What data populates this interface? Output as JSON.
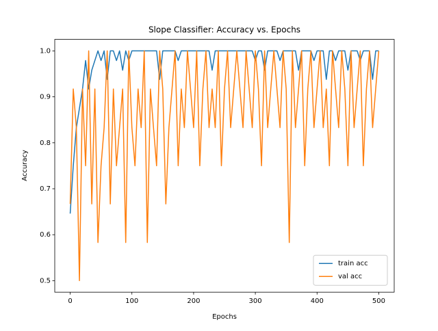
{
  "chart_data": {
    "type": "line",
    "title": "Slope Classifier: Accuracy vs. Epochs",
    "x_label": "Epochs",
    "y_label": "Accuracy",
    "x": [
      0,
      5,
      10,
      15,
      20,
      25,
      30,
      35,
      40,
      45,
      50,
      55,
      60,
      65,
      70,
      75,
      80,
      85,
      90,
      95,
      100,
      105,
      110,
      115,
      120,
      125,
      130,
      135,
      140,
      145,
      150,
      155,
      160,
      165,
      170,
      175,
      180,
      185,
      190,
      195,
      200,
      205,
      210,
      215,
      220,
      225,
      230,
      235,
      240,
      245,
      250,
      255,
      260,
      265,
      270,
      275,
      280,
      285,
      290,
      295,
      300,
      305,
      310,
      315,
      320,
      325,
      330,
      335,
      340,
      345,
      350,
      355,
      360,
      365,
      370,
      375,
      380,
      385,
      390,
      395,
      400,
      405,
      410,
      415,
      420,
      425,
      430,
      435,
      440,
      445,
      450,
      455,
      460,
      465,
      470,
      475,
      480,
      485,
      490,
      495,
      500
    ],
    "series": [
      {
        "name": "train acc",
        "color": "#1f77b4",
        "values": [
          0.646,
          0.75,
          0.833,
          0.875,
          0.917,
          0.979,
          0.917,
          0.958,
          0.979,
          1.0,
          0.979,
          1.0,
          0.938,
          1.0,
          1.0,
          0.979,
          1.0,
          0.958,
          1.0,
          0.979,
          1.0,
          1.0,
          1.0,
          1.0,
          1.0,
          1.0,
          1.0,
          1.0,
          1.0,
          0.938,
          1.0,
          1.0,
          1.0,
          1.0,
          1.0,
          0.979,
          1.0,
          1.0,
          1.0,
          1.0,
          1.0,
          1.0,
          1.0,
          1.0,
          1.0,
          1.0,
          0.958,
          1.0,
          1.0,
          1.0,
          1.0,
          1.0,
          1.0,
          1.0,
          1.0,
          1.0,
          1.0,
          1.0,
          1.0,
          1.0,
          0.979,
          1.0,
          1.0,
          0.958,
          1.0,
          1.0,
          1.0,
          1.0,
          0.979,
          1.0,
          1.0,
          1.0,
          1.0,
          1.0,
          0.958,
          1.0,
          1.0,
          1.0,
          1.0,
          0.979,
          1.0,
          1.0,
          1.0,
          0.938,
          1.0,
          1.0,
          0.979,
          1.0,
          1.0,
          1.0,
          0.958,
          1.0,
          1.0,
          1.0,
          0.979,
          1.0,
          1.0,
          1.0,
          0.938,
          1.0,
          1.0
        ]
      },
      {
        "name": "val acc",
        "color": "#ff7f0e",
        "values": [
          0.667,
          0.917,
          0.833,
          0.5,
          0.917,
          0.75,
          1.0,
          0.667,
          0.917,
          0.583,
          0.75,
          0.833,
          1.0,
          0.667,
          0.917,
          0.75,
          0.833,
          0.917,
          0.583,
          1.0,
          0.833,
          0.75,
          0.917,
          0.833,
          1.0,
          0.583,
          0.917,
          0.833,
          0.75,
          1.0,
          0.917,
          0.667,
          0.833,
          0.917,
          1.0,
          0.75,
          0.917,
          0.833,
          1.0,
          0.917,
          0.833,
          1.0,
          0.75,
          0.917,
          1.0,
          0.833,
          0.917,
          0.833,
          1.0,
          0.75,
          0.917,
          1.0,
          0.833,
          0.917,
          1.0,
          0.917,
          0.833,
          1.0,
          0.917,
          0.833,
          1.0,
          0.917,
          0.75,
          1.0,
          0.833,
          0.917,
          1.0,
          0.917,
          0.833,
          1.0,
          0.917,
          0.583,
          1.0,
          0.833,
          0.917,
          1.0,
          0.75,
          0.917,
          1.0,
          0.833,
          0.917,
          1.0,
          0.833,
          0.917,
          0.75,
          1.0,
          0.917,
          0.833,
          1.0,
          0.917,
          0.75,
          1.0,
          0.833,
          0.917,
          1.0,
          0.75,
          0.917,
          1.0,
          0.833,
          0.917,
          1.0
        ]
      }
    ],
    "xlim": [
      -25,
      525
    ],
    "xticks": [
      0,
      100,
      200,
      300,
      400,
      500
    ],
    "ylim": [
      0.475,
      1.025
    ],
    "yticks": [
      0.5,
      0.6,
      0.7,
      0.8,
      0.9,
      {
        "value": 1,
        "label": "1.0"
      }
    ],
    "legend": "lower right"
  }
}
